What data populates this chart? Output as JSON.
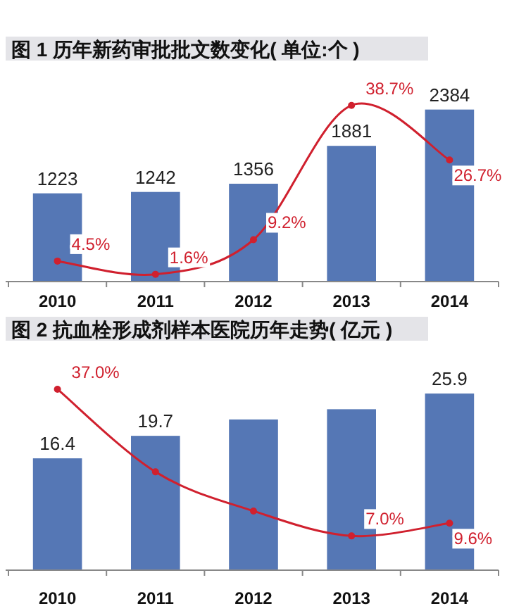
{
  "chart_data": [
    {
      "type": "bar",
      "title": "图 1  历年新药审批批文数变化( 单位:个 )",
      "categories": [
        "2010",
        "2011",
        "2012",
        "2013",
        "2014"
      ],
      "tick_labels": "x",
      "series": [
        {
          "color": "#5577b5",
          "values": [
            1223,
            1242,
            1356,
            1881,
            2384
          ],
          "value_labels": [
            "1223",
            "1242",
            "1356",
            "1881",
            "2384"
          ]
        },
        {
          "type": "line",
          "axis": "y2",
          "color": "#d0202e",
          "marker": "circle",
          "values": [
            4.5,
            1.6,
            9.2,
            38.7,
            26.7
          ],
          "value_labels": [
            "4.5%",
            "1.6%",
            "9.2%",
            "38.7%",
            "26.7%"
          ]
        }
      ]
    },
    {
      "type": "bar",
      "title": "图 2  抗血栓形成剂样本医院历年走势( 亿元 )",
      "categories": [
        "2010",
        "2011",
        "2012",
        "2013",
        "2014"
      ],
      "tick_labels": "x",
      "series": [
        {
          "color": "#5577b5",
          "values": [
            16.4,
            19.7,
            22.1,
            23.6,
            25.9
          ],
          "value_labels": [
            "16.4",
            "19.7",
            null,
            null,
            "25.9"
          ]
        },
        {
          "type": "line",
          "axis": "y2",
          "color": "#d0202e",
          "marker": "circle",
          "values": [
            37.0,
            20.1,
            12.1,
            7.0,
            9.6
          ],
          "value_labels": [
            "37.0%",
            null,
            null,
            "7.0%",
            "9.6%"
          ]
        }
      ]
    }
  ]
}
